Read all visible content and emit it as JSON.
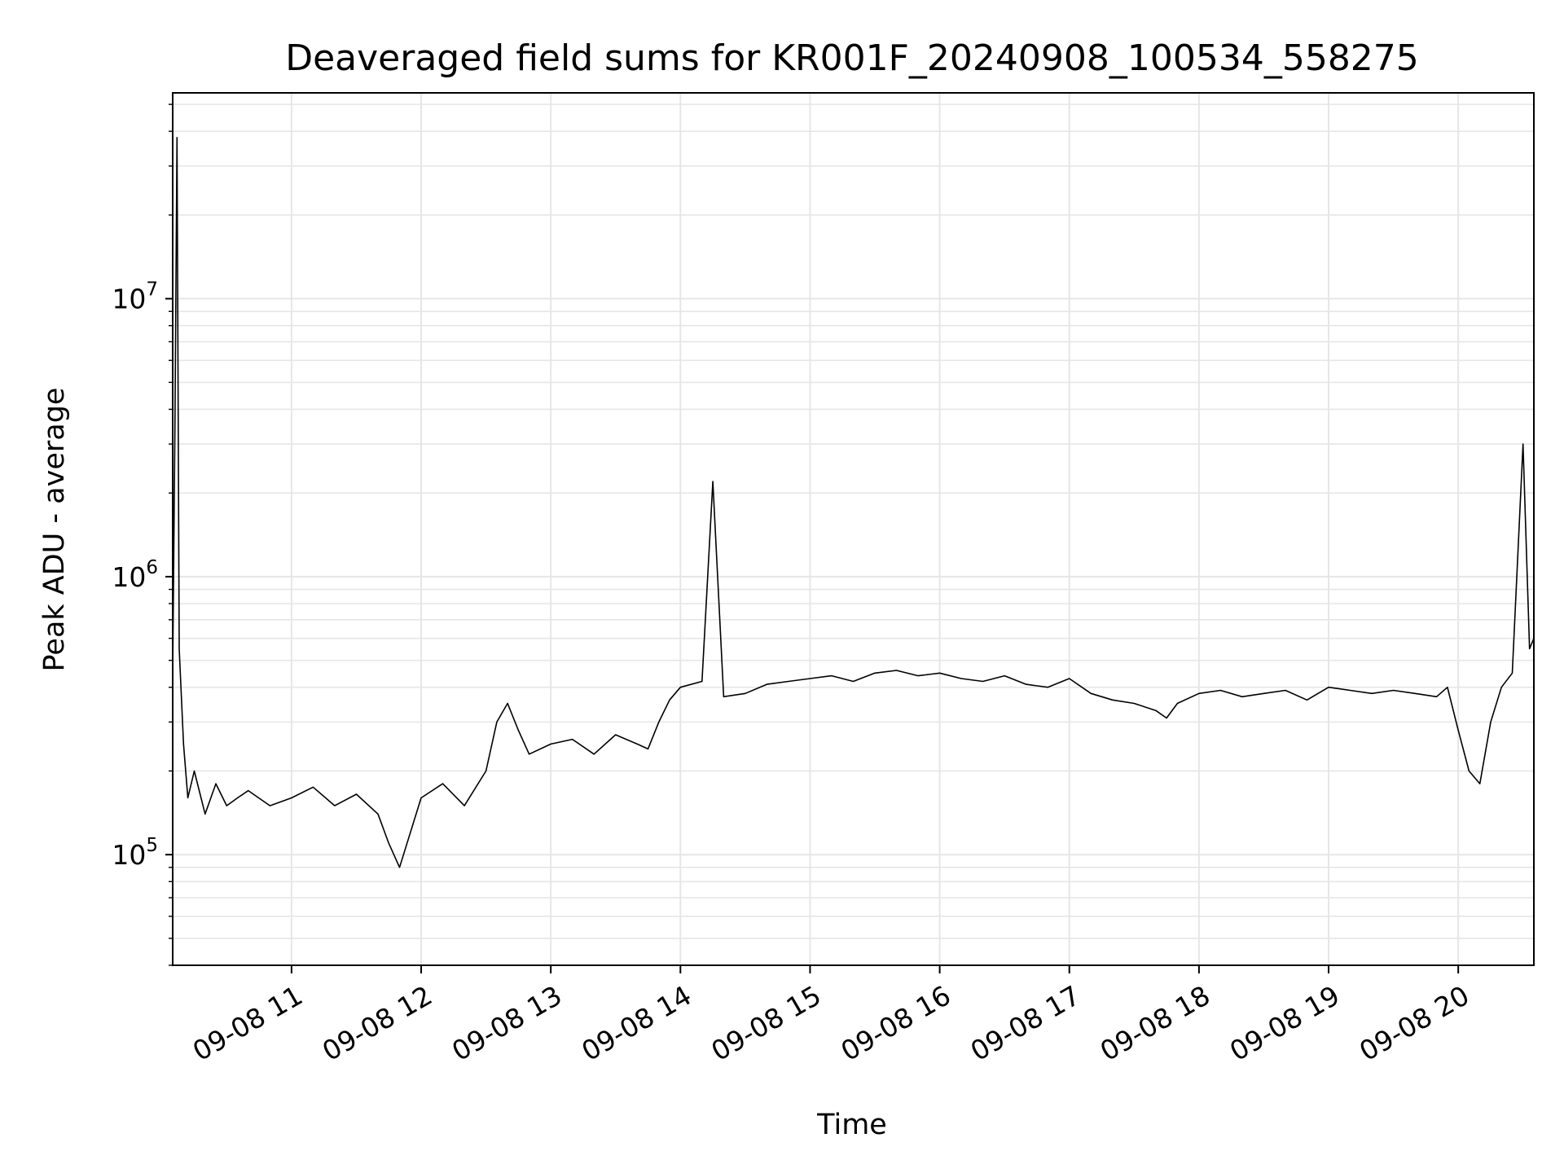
{
  "chart_data": {
    "type": "line",
    "title": "Deaveraged field sums for KR001F_20240908_100534_558275",
    "xlabel": "Time",
    "ylabel": "Peak ADU - average",
    "y_scale": "log",
    "ylim": [
      40000,
      55000000
    ],
    "xlim": [
      "2024-09-08 10:05",
      "2024-09-08 20:35"
    ],
    "grid": true,
    "line_color": "#000000",
    "grid_color": "#e6e6e6",
    "x_ticks": [
      {
        "value": "2024-09-08 11:00",
        "label": "09-08 11"
      },
      {
        "value": "2024-09-08 12:00",
        "label": "09-08 12"
      },
      {
        "value": "2024-09-08 13:00",
        "label": "09-08 13"
      },
      {
        "value": "2024-09-08 14:00",
        "label": "09-08 14"
      },
      {
        "value": "2024-09-08 15:00",
        "label": "09-08 15"
      },
      {
        "value": "2024-09-08 16:00",
        "label": "09-08 16"
      },
      {
        "value": "2024-09-08 17:00",
        "label": "09-08 17"
      },
      {
        "value": "2024-09-08 18:00",
        "label": "09-08 18"
      },
      {
        "value": "2024-09-08 19:00",
        "label": "09-08 19"
      },
      {
        "value": "2024-09-08 20:00",
        "label": "09-08 20"
      }
    ],
    "y_ticks": [
      {
        "value": 100000,
        "base": "10",
        "exp": "5"
      },
      {
        "value": 1000000,
        "base": "10",
        "exp": "6"
      },
      {
        "value": 10000000,
        "base": "10",
        "exp": "7"
      }
    ],
    "series": [
      {
        "x": [
          "2024-09-08 10:05",
          "2024-09-08 10:06",
          "2024-09-08 10:07",
          "2024-09-08 10:08",
          "2024-09-08 10:10",
          "2024-09-08 10:12",
          "2024-09-08 10:15",
          "2024-09-08 10:20",
          "2024-09-08 10:25",
          "2024-09-08 10:30",
          "2024-09-08 10:35",
          "2024-09-08 10:40",
          "2024-09-08 10:50",
          "2024-09-08 11:00",
          "2024-09-08 11:10",
          "2024-09-08 11:20",
          "2024-09-08 11:30",
          "2024-09-08 11:40",
          "2024-09-08 11:45",
          "2024-09-08 11:50",
          "2024-09-08 12:00",
          "2024-09-08 12:10",
          "2024-09-08 12:20",
          "2024-09-08 12:30",
          "2024-09-08 12:35",
          "2024-09-08 12:40",
          "2024-09-08 12:45",
          "2024-09-08 12:50",
          "2024-09-08 13:00",
          "2024-09-08 13:10",
          "2024-09-08 13:20",
          "2024-09-08 13:30",
          "2024-09-08 13:40",
          "2024-09-08 13:45",
          "2024-09-08 13:50",
          "2024-09-08 13:55",
          "2024-09-08 14:00",
          "2024-09-08 14:10",
          "2024-09-08 14:15",
          "2024-09-08 14:20",
          "2024-09-08 14:30",
          "2024-09-08 14:40",
          "2024-09-08 14:50",
          "2024-09-08 15:00",
          "2024-09-08 15:10",
          "2024-09-08 15:20",
          "2024-09-08 15:30",
          "2024-09-08 15:40",
          "2024-09-08 15:50",
          "2024-09-08 16:00",
          "2024-09-08 16:10",
          "2024-09-08 16:20",
          "2024-09-08 16:30",
          "2024-09-08 16:40",
          "2024-09-08 16:50",
          "2024-09-08 17:00",
          "2024-09-08 17:10",
          "2024-09-08 17:20",
          "2024-09-08 17:30",
          "2024-09-08 17:40",
          "2024-09-08 17:45",
          "2024-09-08 17:50",
          "2024-09-08 18:00",
          "2024-09-08 18:10",
          "2024-09-08 18:20",
          "2024-09-08 18:30",
          "2024-09-08 18:40",
          "2024-09-08 18:50",
          "2024-09-08 19:00",
          "2024-09-08 19:10",
          "2024-09-08 19:20",
          "2024-09-08 19:30",
          "2024-09-08 19:40",
          "2024-09-08 19:50",
          "2024-09-08 19:55",
          "2024-09-08 20:00",
          "2024-09-08 20:05",
          "2024-09-08 20:10",
          "2024-09-08 20:15",
          "2024-09-08 20:20",
          "2024-09-08 20:25",
          "2024-09-08 20:30",
          "2024-09-08 20:33",
          "2024-09-08 20:35"
        ],
        "y": [
          450000,
          3300000,
          38000000,
          550000,
          250000,
          160000,
          200000,
          140000,
          180000,
          150000,
          160000,
          170000,
          150000,
          160000,
          175000,
          150000,
          165000,
          140000,
          110000,
          90000,
          160000,
          180000,
          150000,
          200000,
          300000,
          350000,
          280000,
          230000,
          250000,
          260000,
          230000,
          270000,
          250000,
          240000,
          300000,
          360000,
          400000,
          420000,
          2200000,
          370000,
          380000,
          410000,
          420000,
          430000,
          440000,
          420000,
          450000,
          460000,
          440000,
          450000,
          430000,
          420000,
          440000,
          410000,
          400000,
          430000,
          380000,
          360000,
          350000,
          330000,
          310000,
          350000,
          380000,
          390000,
          370000,
          380000,
          390000,
          360000,
          400000,
          390000,
          380000,
          390000,
          380000,
          370000,
          400000,
          280000,
          200000,
          180000,
          300000,
          400000,
          450000,
          3000000,
          550000,
          600000
        ]
      }
    ]
  }
}
